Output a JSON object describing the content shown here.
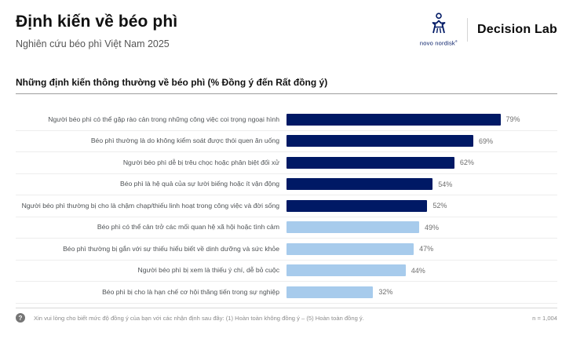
{
  "header": {
    "title": "Định kiến về béo phì",
    "subtitle": "Nghiên cứu béo phì Việt Nam 2025"
  },
  "brand": {
    "logo_icon": "novo-nordisk-apis-bull",
    "logo_wordmark": "novo nordisk",
    "registered_mark": "®",
    "partner_name": "Decision Lab",
    "logo_color": "#001965"
  },
  "section": {
    "title": "Những định kiến thông thường về béo phì (% Đồng ý đến Rất đồng ý)"
  },
  "chart_data": {
    "type": "bar",
    "orientation": "horizontal",
    "title": "Những định kiến thông thường về béo phì (% Đồng ý đến Rất đồng ý)",
    "xlabel": "",
    "ylabel": "",
    "xlim": [
      0,
      100
    ],
    "grid": false,
    "legend": "none",
    "categories": [
      "Người béo phì có thể gặp rào cản trong những công việc coi trọng ngoại hình",
      "Béo phì thường là do không kiểm soát được thói quen ăn uống",
      "Người béo phì dễ bị trêu chọc hoặc phân biệt đối xử",
      "Béo phì là hệ quả của sự lười biếng hoặc ít vận động",
      "Người béo phì thường bị cho là chậm chạp/thiếu linh hoạt trong công việc và đời sống",
      "Béo phì có thể cản trở các mối quan hệ xã hội hoặc tình cảm",
      "Béo phì thường bị gắn với sự thiếu hiểu biết về dinh dưỡng và sức khỏe",
      "Người béo phì bị xem là thiếu ý chí, dễ bỏ cuộc",
      "Béo phì bị cho là hạn chế cơ hội thăng tiến trong sự nghiệp"
    ],
    "values": [
      79,
      69,
      62,
      54,
      52,
      49,
      47,
      44,
      32
    ],
    "colors": {
      "dark": "#001965",
      "light": "#a7cbec"
    },
    "rows": [
      {
        "label": "Người béo phì có thể gặp rào cản trong những công việc coi trọng ngoại hình",
        "value": 79,
        "value_label": "79%",
        "tier": "dark"
      },
      {
        "label": "Béo phì thường là do không kiểm soát được thói quen ăn uống",
        "value": 69,
        "value_label": "69%",
        "tier": "dark"
      },
      {
        "label": "Người béo phì dễ bị trêu chọc hoặc phân biệt đối xử",
        "value": 62,
        "value_label": "62%",
        "tier": "dark"
      },
      {
        "label": "Béo phì là hệ quả của sự lười biếng hoặc ít vận động",
        "value": 54,
        "value_label": "54%",
        "tier": "dark"
      },
      {
        "label": "Người béo phì thường bị cho là chậm chạp/thiếu linh hoạt trong công việc và đời sống",
        "value": 52,
        "value_label": "52%",
        "tier": "dark"
      },
      {
        "label": "Béo phì có thể cản trở các mối quan hệ xã hội hoặc tình cảm",
        "value": 49,
        "value_label": "49%",
        "tier": "light"
      },
      {
        "label": "Béo phì thường bị gắn với sự thiếu hiểu biết về dinh dưỡng và sức khỏe",
        "value": 47,
        "value_label": "47%",
        "tier": "light"
      },
      {
        "label": "Người béo phì bị xem là thiếu ý chí, dễ bỏ cuộc",
        "value": 44,
        "value_label": "44%",
        "tier": "light"
      },
      {
        "label": "Béo phì bị cho là hạn chế cơ hội thăng tiến trong sự nghiệp",
        "value": 32,
        "value_label": "32%",
        "tier": "light"
      }
    ]
  },
  "footer": {
    "question_icon": "?",
    "note": "Xin vui lòng cho biết mức độ đồng ý của bạn với các nhận định sau đây: (1) Hoàn toàn không đồng ý – (5) Hoàn toàn đồng ý.",
    "sample_size": "n = 1,004"
  }
}
